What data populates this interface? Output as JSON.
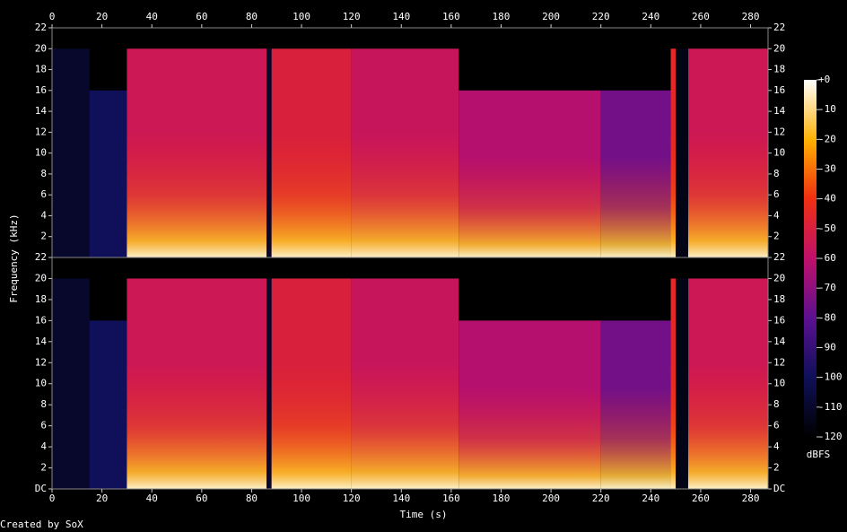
{
  "chart_data": {
    "type": "spectrogram",
    "x_label": "Time (s)",
    "y_label": "Frequency (kHz)",
    "colorbar_label": "dBFS",
    "credit": "Created by SoX",
    "xlim": [
      0,
      287
    ],
    "xticks": [
      0,
      20,
      40,
      60,
      80,
      100,
      120,
      140,
      160,
      180,
      200,
      220,
      240,
      260,
      280
    ],
    "ylim": [
      0,
      22
    ],
    "yticks": [
      {
        "value": 0,
        "label": "DC"
      },
      2,
      4,
      6,
      8,
      10,
      12,
      14,
      16,
      18,
      20,
      22
    ],
    "clim": [
      -120,
      0
    ],
    "cticks": [
      {
        "value": 0,
        "label": "+0"
      },
      -10,
      -20,
      -30,
      -40,
      -50,
      -60,
      -70,
      -80,
      -90,
      -100,
      -110,
      -120
    ],
    "channels": 2,
    "segments": [
      {
        "start": 0,
        "end": 15,
        "cutoff": 20,
        "level": -110
      },
      {
        "start": 15,
        "end": 30,
        "cutoff": 16,
        "level": -100
      },
      {
        "start": 30,
        "end": 86,
        "cutoff": 20,
        "level": -55
      },
      {
        "start": 86,
        "end": 88,
        "cutoff": 20,
        "level": -110
      },
      {
        "start": 88,
        "end": 120,
        "cutoff": 20,
        "level": -50
      },
      {
        "start": 120,
        "end": 163,
        "cutoff": 20,
        "level": -57
      },
      {
        "start": 163,
        "end": 220,
        "cutoff": 16,
        "level": -62
      },
      {
        "start": 220,
        "end": 248,
        "cutoff": 16,
        "level": -75
      },
      {
        "start": 248,
        "end": 250,
        "cutoff": 20,
        "level": -45
      },
      {
        "start": 250,
        "end": 255,
        "cutoff": 20,
        "level": -115
      },
      {
        "start": 255,
        "end": 287,
        "cutoff": 20,
        "level": -55
      }
    ]
  }
}
